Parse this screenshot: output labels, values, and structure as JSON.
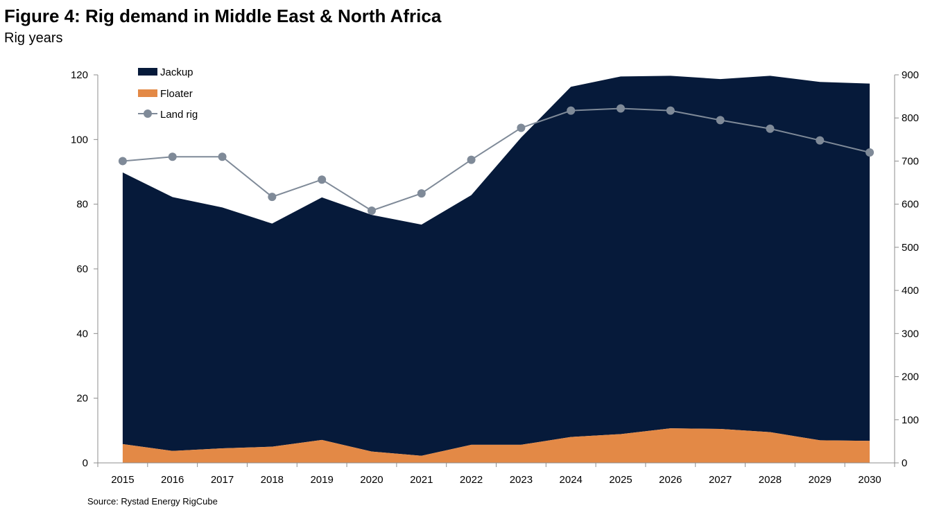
{
  "header": {
    "title": "Figure 4: Rig demand in Middle East & North Africa",
    "subtitle": "Rig years"
  },
  "footer": {
    "source": "Source: Rystad Energy RigCube"
  },
  "colors": {
    "jackup": "#061a3a",
    "floater": "#e38946",
    "land_rig": "#7f8a98"
  },
  "chart_data": {
    "type": "area",
    "title": "Figure 4: Rig demand in Middle East & North Africa",
    "subtitle": "Rig years",
    "x": [
      "2015",
      "2016",
      "2017",
      "2018",
      "2019",
      "2020",
      "2021",
      "2022",
      "2023",
      "2024",
      "2025",
      "2026",
      "2027",
      "2028",
      "2029",
      "2030"
    ],
    "ylim_left": [
      0,
      120
    ],
    "yticks_left": [
      0,
      20,
      40,
      60,
      80,
      100,
      120
    ],
    "ylim_right": [
      0,
      900
    ],
    "yticks_right": [
      0,
      100,
      200,
      300,
      400,
      500,
      600,
      700,
      800,
      900
    ],
    "legend_position": "top-left",
    "grid": false,
    "series": [
      {
        "name": "Jackup",
        "type": "stacked-area",
        "axis": "left",
        "values": [
          84.0,
          78.5,
          74.5,
          69.0,
          75.0,
          73.2,
          71.5,
          77.2,
          95.0,
          108.3,
          110.6,
          109.0,
          108.2,
          110.2,
          110.8,
          110.5
        ]
      },
      {
        "name": "Floater",
        "type": "stacked-area",
        "axis": "left",
        "values": [
          5.8,
          3.7,
          4.5,
          5.0,
          7.1,
          3.5,
          2.2,
          5.6,
          5.6,
          8.0,
          8.9,
          10.7,
          10.5,
          9.5,
          7.0,
          6.8
        ]
      },
      {
        "name": "Land rig",
        "type": "line",
        "axis": "right",
        "values": [
          700,
          710,
          710,
          617,
          657,
          585,
          625,
          703,
          777,
          817,
          822,
          817,
          795,
          775,
          748,
          720
        ]
      }
    ]
  }
}
